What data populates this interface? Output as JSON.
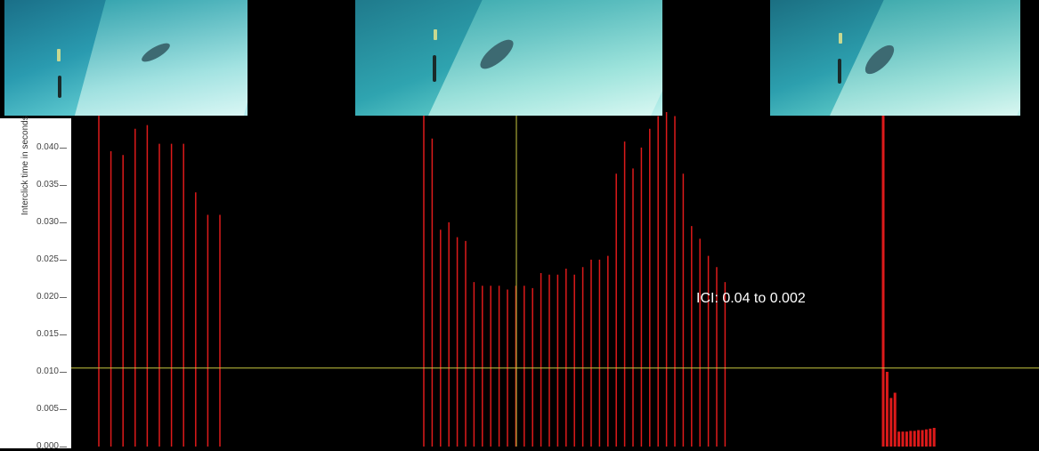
{
  "video_frames": [
    {
      "name": "video-frame-1"
    },
    {
      "name": "video-frame-2"
    },
    {
      "name": "video-frame-3"
    }
  ],
  "annotation": "ICI: 0.04 to 0.002",
  "colors": {
    "bars": "#dd1a1a",
    "cursor": "#c8c840",
    "background": "#000000",
    "axis_panel": "#ffffff"
  },
  "chart_data": {
    "type": "bar",
    "xlabel": "",
    "ylabel": "Interclick time in seconds",
    "ylim": [
      0,
      0.0445
    ],
    "yticks": [
      "0.040",
      "0.035",
      "0.030",
      "0.025",
      "0.020",
      "0.015",
      "0.010",
      "0.005",
      "0.000"
    ],
    "grid": false,
    "cursor_y": 0.0105,
    "series": [
      {
        "values": [
          0.045,
          0.0395,
          0.039,
          0.0425,
          0.043,
          0.0405,
          0.0405,
          0.0405,
          0.034,
          0.031,
          0.031
        ]
      },
      {
        "values": [
          0.045,
          0.0412,
          0.029,
          0.03,
          0.028,
          0.0275,
          0.022,
          0.0215,
          0.0215,
          0.0215,
          0.021,
          0.0215,
          0.0215,
          0.0212,
          0.0232,
          0.023,
          0.023,
          0.0238,
          0.023,
          0.024,
          0.025,
          0.025,
          0.0255,
          0.0365,
          0.0408,
          0.0372,
          0.04,
          0.0425,
          0.0442,
          0.045,
          0.0442,
          0.0365,
          0.0295,
          0.0278,
          0.0255,
          0.024,
          0.022
        ]
      },
      {
        "values": [
          0.045,
          0.01,
          0.0065,
          0.0072,
          0.002,
          0.002,
          0.002,
          0.0021,
          0.0021,
          0.0022,
          0.0022,
          0.0023,
          0.0024,
          0.0025
        ]
      }
    ]
  }
}
